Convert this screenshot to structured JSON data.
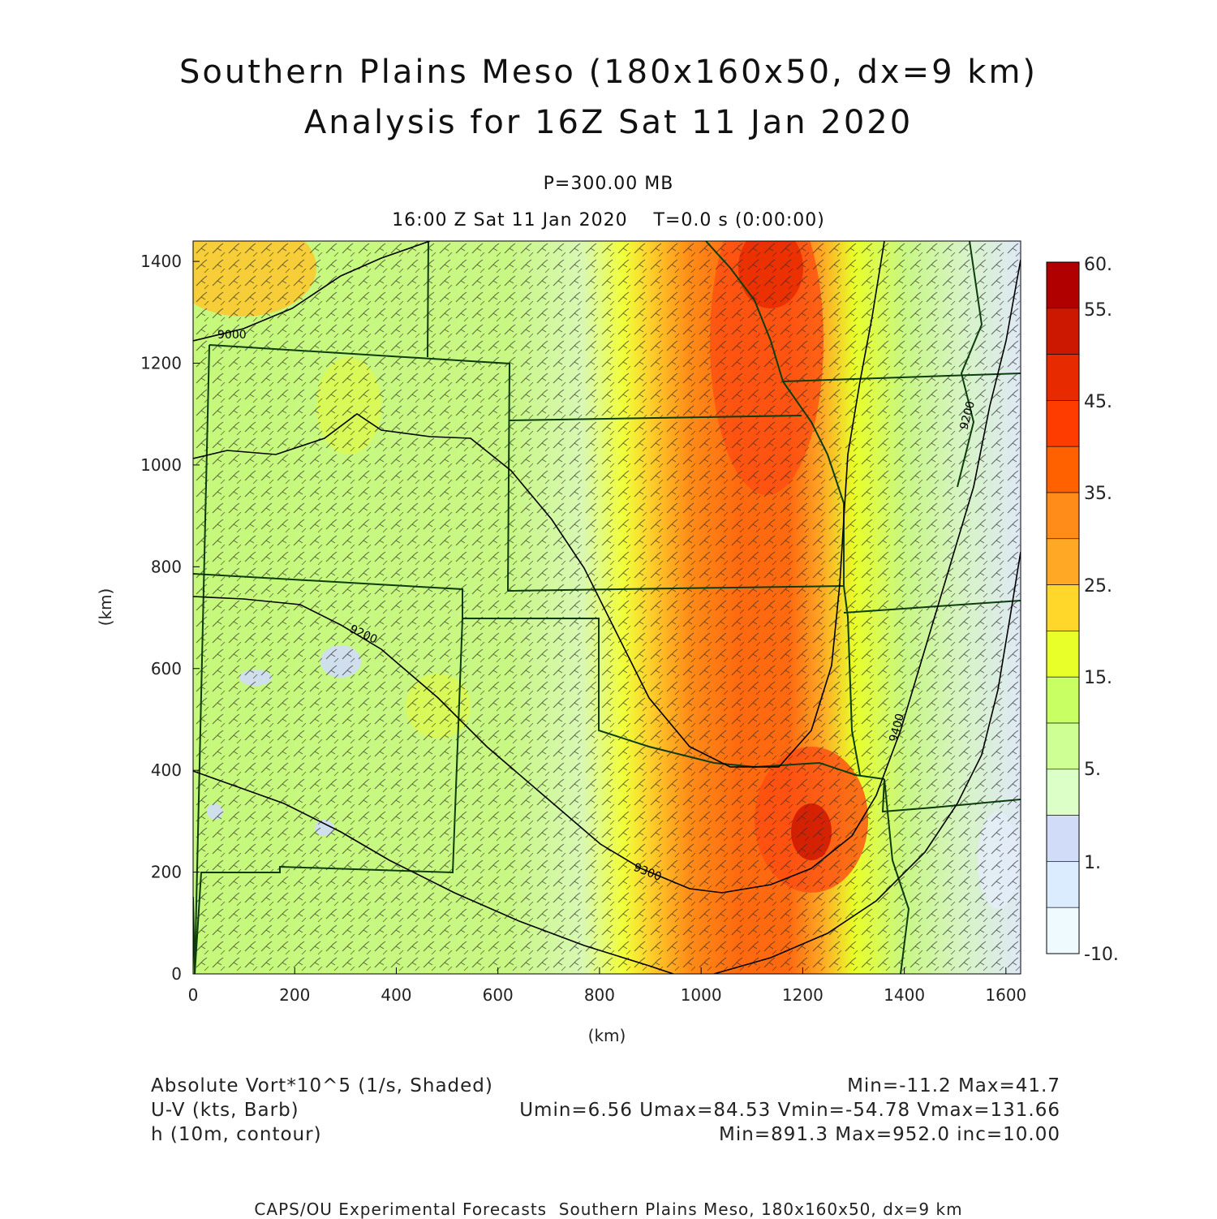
{
  "header": {
    "title_line1": "Southern Plains Meso (180x160x50, dx=9 km)",
    "title_line2": "Analysis for 16Z Sat 11 Jan 2020",
    "level": "P=300.00 MB",
    "time": "16:00 Z Sat 11 Jan 2020    T=0.0 s (0:00:00)"
  },
  "axes": {
    "x_label": "(km)",
    "y_label": "(km)",
    "x_ticks": [
      "0",
      "200",
      "400",
      "600",
      "800",
      "1000",
      "1200",
      "1400",
      "1600"
    ],
    "y_ticks": [
      "0",
      "200",
      "400",
      "600",
      "800",
      "1000",
      "1200",
      "1400"
    ],
    "x_range_km": [
      0,
      1629
    ],
    "y_range_km": [
      0,
      1440
    ]
  },
  "colorbar": {
    "labels": [
      "60.",
      "55.",
      "45.",
      "35.",
      "25.",
      "15.",
      "5.",
      "1.",
      "-10."
    ],
    "colors": [
      "#b00000",
      "#cc1800",
      "#e82a00",
      "#ff3c00",
      "#ff6000",
      "#ff8c18",
      "#ffa826",
      "#ffd72a",
      "#e8ff2a",
      "#c8ff62",
      "#cdff94",
      "#dcffc8",
      "#d0dcf8",
      "#dcecff",
      "#eefaff"
    ]
  },
  "contours": {
    "labels": [
      "9000",
      "9200",
      "9300",
      "9400",
      "9200"
    ]
  },
  "legend": {
    "line1_left": "Absolute Vort*10^5 (1/s, Shaded)",
    "line1_right": "Min=-11.2 Max=41.7",
    "line2_left": "U-V (kts, Barb)",
    "line2_right": "Umin=6.56 Umax=84.53 Vmin=-54.78 Vmax=131.66",
    "line3_left": "h (10m, contour)",
    "line3_right": "Min=891.3 Max=952.0 inc=10.00"
  },
  "footer": "CAPS/OU Experimental Forecasts  Southern Plains Meso, 180x160x50, dx=9 km"
}
